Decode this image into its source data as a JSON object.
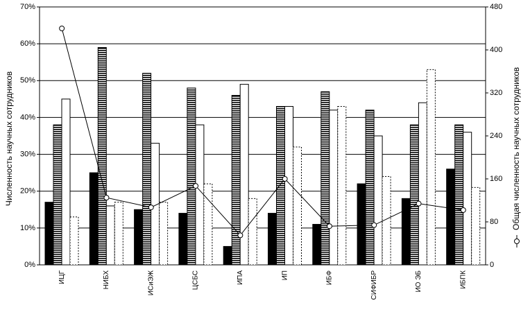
{
  "chart_data": {
    "type": "bar-line",
    "categories": [
      "ИЦГ",
      "НИБХ",
      "ИСиЭЖ",
      "ЦСБС",
      "ИПА",
      "ИП",
      "ИБФ",
      "СИФИБР",
      "ИО ЭБ",
      "ИБПК"
    ],
    "y_label": "Численность научных сотрудников",
    "ylim": [
      0,
      70
    ],
    "yticks": [
      {
        "value": 0,
        "label": "0%"
      },
      {
        "value": 10,
        "label": "10%"
      },
      {
        "value": 20,
        "label": "20%"
      },
      {
        "value": 30,
        "label": "30%"
      },
      {
        "value": 40,
        "label": "40%"
      },
      {
        "value": 50,
        "label": "50%"
      },
      {
        "value": 60,
        "label": "60%"
      },
      {
        "value": 70,
        "label": "70%"
      }
    ],
    "y2lim": [
      0,
      480
    ],
    "y2ticks": [
      0,
      80,
      160,
      240,
      320,
      400,
      480
    ],
    "grid": true,
    "series": [
      {
        "style": "solid",
        "color": "#000000",
        "values": [
          17,
          25,
          15,
          14,
          5,
          14,
          11,
          22,
          18,
          26
        ]
      },
      {
        "style": "striped",
        "color": "#000000",
        "values": [
          38,
          59,
          52,
          48,
          46,
          43,
          47,
          42,
          38,
          38
        ]
      },
      {
        "style": "empty",
        "color": "#000000",
        "values": [
          45,
          16,
          33,
          38,
          49,
          43,
          42,
          35,
          44,
          36
        ]
      },
      {
        "style": "dotted",
        "color": "#000000",
        "values": [
          13,
          17,
          17,
          22,
          18,
          32,
          43,
          24,
          53,
          21
        ]
      },
      {
        "name": "Общая численность научных сотрудников",
        "style": "line",
        "axis": "y2",
        "color": "#000000",
        "values": [
          440,
          125,
          107,
          147,
          55,
          160,
          72,
          74,
          114,
          102
        ]
      }
    ]
  }
}
